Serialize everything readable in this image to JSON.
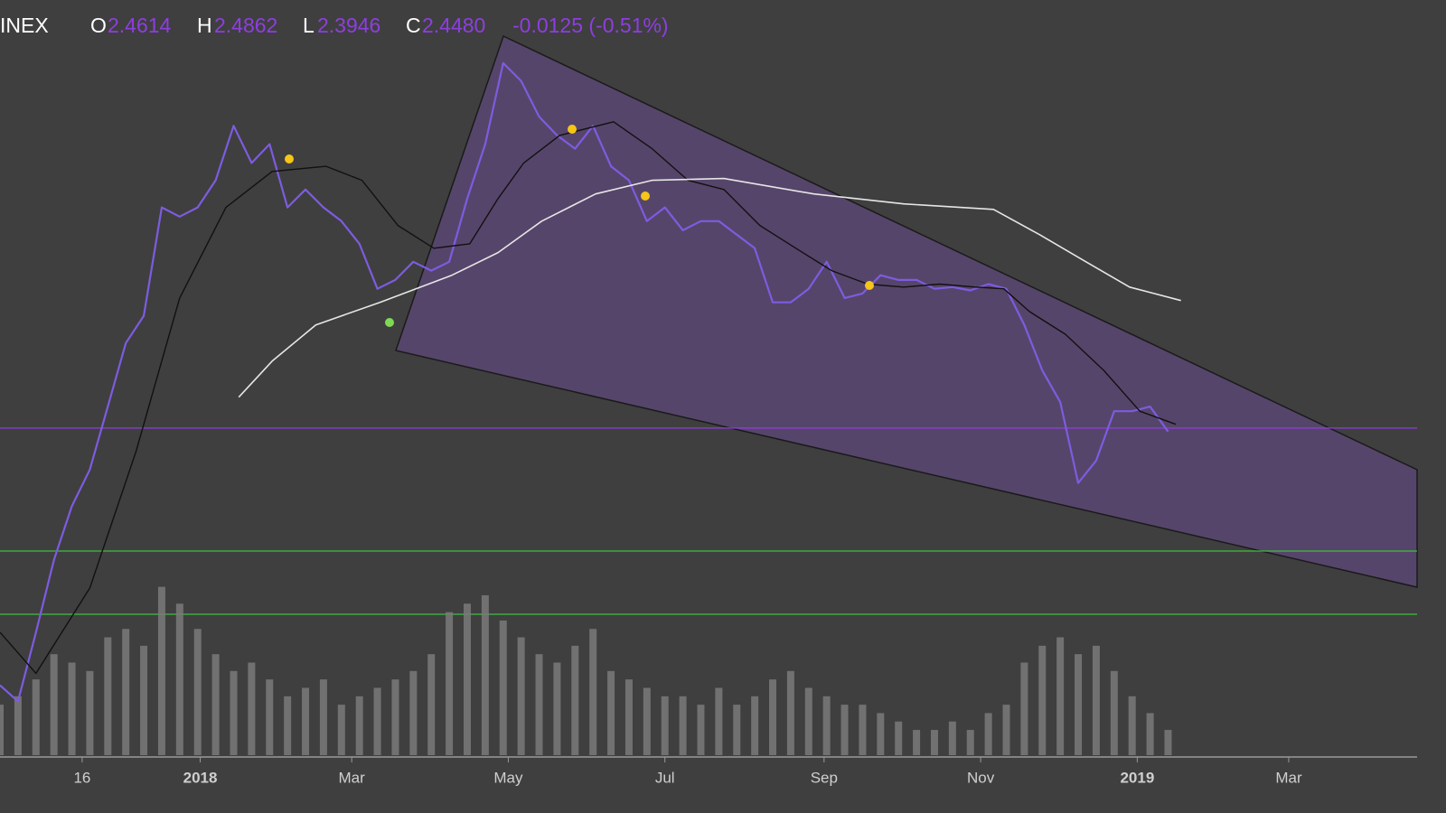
{
  "header": {
    "symbol": "INEX",
    "open_label": "O",
    "open": "2.4614",
    "high_label": "H",
    "high": "2.4862",
    "low_label": "L",
    "low": "2.3946",
    "close_label": "C",
    "close": "2.4480",
    "change": "-0.0125 (-0.51%)"
  },
  "chart_data": {
    "type": "line",
    "log_scale": true,
    "xlim": [
      0,
      552
    ],
    "ylim": [
      0.394,
      26.9
    ],
    "xticks": [
      {
        "value": 32,
        "label": "16"
      },
      {
        "value": 78,
        "label": "2018"
      },
      {
        "value": 137,
        "label": "Mar"
      },
      {
        "value": 198,
        "label": "May"
      },
      {
        "value": 259,
        "label": "Jul"
      },
      {
        "value": 321,
        "label": "Sep"
      },
      {
        "value": 382,
        "label": "Nov"
      },
      {
        "value": 443,
        "label": "2019"
      },
      {
        "value": 502,
        "label": "Mar"
      }
    ],
    "series": [
      {
        "color": "#7d5ce0",
        "width": 2.2,
        "x": [
          0,
          7,
          14,
          21,
          28,
          35,
          42,
          49,
          56,
          63,
          70,
          77,
          84,
          91,
          98,
          105,
          112,
          119,
          126,
          133,
          140,
          147,
          154,
          161,
          168,
          175,
          182,
          189,
          196,
          203,
          210,
          217,
          224,
          231,
          238,
          245,
          252,
          259,
          266,
          273,
          280,
          287,
          294,
          301,
          308,
          315,
          322,
          329,
          336,
          343,
          350,
          357,
          364,
          371,
          378,
          385,
          392,
          399,
          406,
          413,
          420,
          427,
          434,
          441,
          448,
          455
        ],
        "values": [
          0.58,
          0.53,
          0.78,
          1.17,
          1.58,
          1.94,
          2.76,
          3.94,
          4.59,
          8.42,
          8.0,
          8.42,
          9.8,
          13.3,
          10.8,
          12.0,
          8.42,
          9.31,
          8.42,
          7.8,
          6.87,
          5.34,
          5.61,
          6.21,
          5.91,
          6.21,
          8.85,
          12.0,
          18.9,
          17.1,
          14.0,
          12.6,
          11.7,
          13.3,
          10.6,
          9.8,
          7.8,
          8.42,
          7.41,
          7.8,
          7.8,
          7.23,
          6.7,
          4.95,
          4.95,
          5.34,
          6.21,
          5.07,
          5.2,
          5.76,
          5.61,
          5.61,
          5.34,
          5.39,
          5.29,
          5.48,
          5.34,
          4.36,
          3.38,
          2.83,
          1.8,
          2.04,
          2.69,
          2.69,
          2.76,
          2.4
        ]
      },
      {
        "color": "#111111",
        "width": 1.4,
        "x": [
          0,
          14,
          35,
          53,
          70,
          88,
          106,
          127,
          141,
          155,
          169,
          183,
          194,
          204,
          218,
          239,
          254,
          268,
          282,
          296,
          310,
          324,
          338,
          352,
          366,
          380,
          391,
          401,
          415,
          430,
          444,
          458
        ],
        "values": [
          0.78,
          0.62,
          1.0,
          2.15,
          5.07,
          8.42,
          10.3,
          10.6,
          9.8,
          7.61,
          6.7,
          6.87,
          8.85,
          10.8,
          12.6,
          13.6,
          11.7,
          9.8,
          9.31,
          7.61,
          6.7,
          5.91,
          5.48,
          5.39,
          5.48,
          5.39,
          5.34,
          4.7,
          4.14,
          3.38,
          2.69,
          2.5
        ]
      },
      {
        "color": "#e6e6e6",
        "width": 1.6,
        "x": [
          93,
          106,
          123,
          148,
          176,
          194,
          211,
          232,
          254,
          282,
          317,
          352,
          387,
          405,
          423,
          440,
          460
        ],
        "values": [
          2.91,
          3.56,
          4.36,
          4.95,
          5.76,
          6.54,
          7.8,
          9.08,
          9.8,
          9.9,
          9.08,
          8.59,
          8.33,
          7.23,
          6.21,
          5.39,
          5.0
        ]
      }
    ],
    "volume": {
      "color": "#7a7a7a",
      "ylim": [
        0,
        220
      ],
      "values": [
        60,
        70,
        90,
        120,
        110,
        100,
        140,
        150,
        130,
        200,
        180,
        150,
        120,
        100,
        110,
        90,
        70,
        80,
        90,
        60,
        70,
        80,
        90,
        100,
        120,
        170,
        180,
        190,
        160,
        140,
        120,
        110,
        130,
        150,
        100,
        90,
        80,
        70,
        70,
        60,
        80,
        60,
        70,
        90,
        100,
        80,
        70,
        60,
        60,
        50,
        40,
        30,
        30,
        40,
        30,
        50,
        60,
        110,
        130,
        140,
        120,
        130,
        100,
        70,
        50,
        30
      ]
    }
  }
}
